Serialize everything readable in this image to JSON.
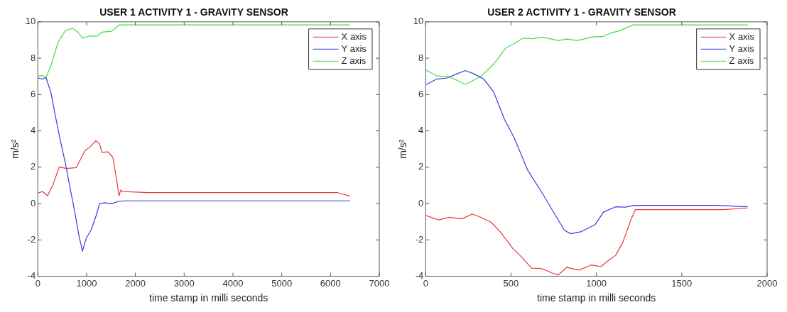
{
  "chart_data": [
    {
      "type": "line",
      "title": "USER 1 ACTIVITY 1 - GRAVITY SENSOR",
      "xlabel": "time stamp in milli seconds",
      "ylabel": "m/s²",
      "xlim": [
        0,
        7000
      ],
      "xticks": [
        0,
        1000,
        2000,
        3000,
        4000,
        5000,
        6000,
        7000
      ],
      "ylim": [
        -4,
        10
      ],
      "yticks": [
        -4,
        -2,
        0,
        2,
        4,
        6,
        8,
        10
      ],
      "legend": "top right",
      "marker": "none",
      "line_style": "solid",
      "series": [
        {
          "name": "X axis",
          "color": "#e8373a",
          "x": [
            0,
            100,
            200,
            315,
            440,
            590,
            790,
            965,
            1075,
            1190,
            1265,
            1315,
            1440,
            1540,
            1615,
            1665,
            1700,
            1740,
            2265,
            6150,
            6400
          ],
          "values": [
            0.58,
            0.66,
            0.43,
            1.07,
            2.02,
            1.93,
            1.98,
            2.91,
            3.13,
            3.46,
            3.29,
            2.82,
            2.85,
            2.53,
            1.32,
            0.43,
            0.75,
            0.66,
            0.6,
            0.6,
            0.41
          ]
        },
        {
          "name": "Y axis",
          "color": "#3a3ae0",
          "x": [
            0,
            100,
            165,
            265,
            365,
            440,
            565,
            665,
            765,
            840,
            915,
            990,
            1090,
            1190,
            1265,
            1365,
            1515,
            1640,
            1765,
            6400
          ],
          "values": [
            6.91,
            6.85,
            6.94,
            6.15,
            4.75,
            3.74,
            2.21,
            0.81,
            -0.58,
            -1.73,
            -2.62,
            -1.92,
            -1.47,
            -0.71,
            -0.01,
            0.05,
            -0.01,
            0.11,
            0.15,
            0.15
          ]
        },
        {
          "name": "Z axis",
          "color": "#44dd44",
          "x": [
            0,
            100,
            165,
            265,
            415,
            565,
            715,
            815,
            915,
            1065,
            1215,
            1315,
            1515,
            1640,
            1665,
            6400
          ],
          "values": [
            7.01,
            7.04,
            6.94,
            7.55,
            8.88,
            9.52,
            9.64,
            9.45,
            9.1,
            9.22,
            9.22,
            9.43,
            9.48,
            9.77,
            9.83,
            9.83
          ]
        }
      ]
    },
    {
      "type": "line",
      "title": "USER 2 ACTIVITY 1 - GRAVITY SENSOR",
      "xlabel": "time stamp in milli seconds",
      "ylabel": "m/s²",
      "xlim": [
        0,
        2000
      ],
      "xticks": [
        0,
        500,
        1000,
        1500,
        2000
      ],
      "ylim": [
        -4,
        10
      ],
      "yticks": [
        -4,
        -2,
        0,
        2,
        4,
        6,
        8,
        10
      ],
      "legend": "top right",
      "marker": "none",
      "line_style": "solid",
      "series": [
        {
          "name": "X axis",
          "color": "#e8373a",
          "x": [
            0,
            76,
            140,
            212,
            272,
            312,
            384,
            441,
            512,
            562,
            620,
            677,
            741,
            777,
            827,
            899,
            970,
            1027,
            1070,
            1113,
            1156,
            1199,
            1228,
            1743,
            1886
          ],
          "values": [
            -0.65,
            -0.9,
            -0.75,
            -0.84,
            -0.58,
            -0.71,
            -1.03,
            -1.6,
            -2.49,
            -2.94,
            -3.55,
            -3.57,
            -3.82,
            -3.93,
            -3.51,
            -3.66,
            -3.38,
            -3.47,
            -3.13,
            -2.85,
            -2.11,
            -0.97,
            -0.33,
            -0.33,
            -0.24
          ]
        },
        {
          "name": "Y axis",
          "color": "#3a3ae0",
          "x": [
            0,
            64,
            126,
            183,
            233,
            283,
            341,
            398,
            462,
            519,
            598,
            684,
            756,
            813,
            849,
            913,
            992,
            1042,
            1113,
            1170,
            1221,
            1714,
            1886
          ],
          "values": [
            6.53,
            6.85,
            6.91,
            7.14,
            7.32,
            7.14,
            6.85,
            6.15,
            4.63,
            3.61,
            1.83,
            0.56,
            -0.58,
            -1.47,
            -1.66,
            -1.54,
            -1.16,
            -0.46,
            -0.18,
            -0.2,
            -0.1,
            -0.1,
            -0.18
          ]
        },
        {
          "name": "Z axis",
          "color": "#44dd44",
          "x": [
            0,
            69,
            140,
            233,
            326,
            398,
            470,
            512,
            570,
            627,
            684,
            777,
            827,
            891,
            970,
            1039,
            1085,
            1142,
            1213,
            1886
          ],
          "values": [
            7.36,
            7.01,
            6.98,
            6.56,
            7.01,
            7.67,
            8.56,
            8.76,
            9.1,
            9.07,
            9.16,
            8.97,
            9.05,
            8.97,
            9.16,
            9.2,
            9.39,
            9.52,
            9.83,
            9.83
          ]
        }
      ]
    }
  ]
}
